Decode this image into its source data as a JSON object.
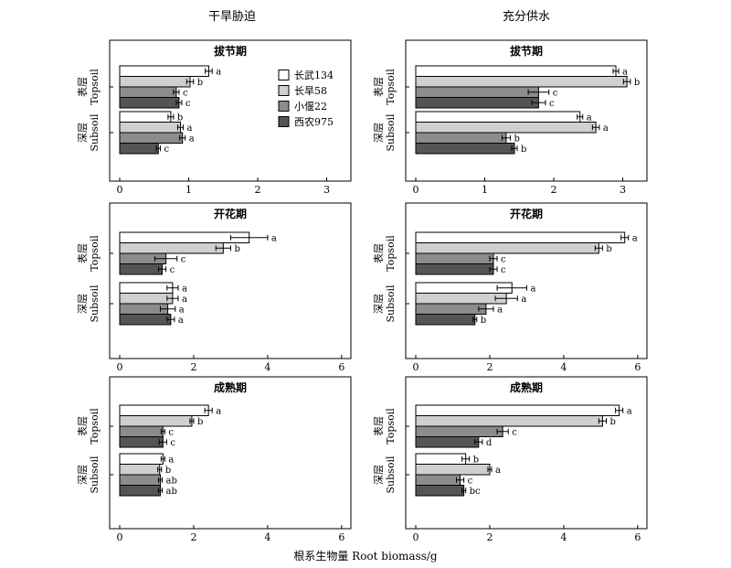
{
  "column_titles": [
    "干旱胁迫",
    "充分供水"
  ],
  "xlabel": "根系生物量 Root biomass/g",
  "layers": [
    {
      "cn": "表层",
      "en": "Topsoil"
    },
    {
      "cn": "深层",
      "en": "Subsoil"
    }
  ],
  "legend": [
    {
      "name": "长武134",
      "color": "#ffffff"
    },
    {
      "name": "长旱58",
      "color": "#d0d0d0"
    },
    {
      "name": "小偃22",
      "color": "#8c8c8c"
    },
    {
      "name": "西农975",
      "color": "#555555"
    }
  ],
  "chart_data": [
    {
      "type": "bar",
      "orientation": "horizontal",
      "column": "干旱胁迫",
      "title": "拔节期",
      "xlim": [
        0,
        3.35
      ],
      "xticks": [
        0,
        1,
        2,
        3
      ],
      "categories": [
        "表层 Topsoil",
        "深层 Subsoil"
      ],
      "series": [
        {
          "name": "长武134",
          "values": [
            1.29,
            0.74
          ],
          "errors": [
            0.05,
            0.04
          ],
          "letters": [
            "a",
            "b"
          ]
        },
        {
          "name": "长旱58",
          "values": [
            1.02,
            0.88
          ],
          "errors": [
            0.05,
            0.04
          ],
          "letters": [
            "b",
            "a"
          ]
        },
        {
          "name": "小偃22",
          "values": [
            0.82,
            0.91
          ],
          "errors": [
            0.04,
            0.04
          ],
          "letters": [
            "c",
            "a"
          ]
        },
        {
          "name": "西农975",
          "values": [
            0.86,
            0.56
          ],
          "errors": [
            0.04,
            0.03
          ],
          "letters": [
            "c",
            "c"
          ]
        }
      ]
    },
    {
      "type": "bar",
      "orientation": "horizontal",
      "column": "充分供水",
      "title": "拔节期",
      "xlim": [
        0,
        3.35
      ],
      "xticks": [
        0,
        1,
        2,
        3
      ],
      "categories": [
        "表层 Topsoil",
        "深层 Subsoil"
      ],
      "series": [
        {
          "name": "长武134",
          "values": [
            2.9,
            2.38
          ],
          "errors": [
            0.04,
            0.04
          ],
          "letters": [
            "a",
            "a"
          ]
        },
        {
          "name": "长旱58",
          "values": [
            3.06,
            2.61
          ],
          "errors": [
            0.05,
            0.05
          ],
          "letters": [
            "b",
            "a"
          ]
        },
        {
          "name": "小偃22",
          "values": [
            1.78,
            1.31
          ],
          "errors": [
            0.15,
            0.06
          ],
          "letters": [
            "c",
            "b"
          ]
        },
        {
          "name": "西农975",
          "values": [
            1.78,
            1.43
          ],
          "errors": [
            0.1,
            0.04
          ],
          "letters": [
            "c",
            "b"
          ]
        }
      ]
    },
    {
      "type": "bar",
      "orientation": "horizontal",
      "column": "干旱胁迫",
      "title": "开花期",
      "xlim": [
        0,
        6.25
      ],
      "xticks": [
        0,
        2,
        4,
        6
      ],
      "categories": [
        "表层 Topsoil",
        "深层 Subsoil"
      ],
      "series": [
        {
          "name": "长武134",
          "values": [
            3.5,
            1.43
          ],
          "errors": [
            0.5,
            0.15
          ],
          "letters": [
            "a",
            "a"
          ]
        },
        {
          "name": "长旱58",
          "values": [
            2.8,
            1.43
          ],
          "errors": [
            0.2,
            0.15
          ],
          "letters": [
            "b",
            "a"
          ]
        },
        {
          "name": "小偃22",
          "values": [
            1.25,
            1.3
          ],
          "errors": [
            0.3,
            0.2
          ],
          "letters": [
            "c",
            "a"
          ]
        },
        {
          "name": "西农975",
          "values": [
            1.15,
            1.38
          ],
          "errors": [
            0.1,
            0.1
          ],
          "letters": [
            "c",
            "a"
          ]
        }
      ]
    },
    {
      "type": "bar",
      "orientation": "horizontal",
      "column": "充分供水",
      "title": "开花期",
      "xlim": [
        0,
        6.25
      ],
      "xticks": [
        0,
        2,
        4,
        6
      ],
      "categories": [
        "表层 Topsoil",
        "深层 Subsoil"
      ],
      "series": [
        {
          "name": "长武134",
          "values": [
            5.65,
            2.6
          ],
          "errors": [
            0.1,
            0.4
          ],
          "letters": [
            "a",
            "a"
          ]
        },
        {
          "name": "长旱58",
          "values": [
            4.95,
            2.45
          ],
          "errors": [
            0.1,
            0.3
          ],
          "letters": [
            "b",
            "a"
          ]
        },
        {
          "name": "小偃22",
          "values": [
            2.1,
            1.9
          ],
          "errors": [
            0.1,
            0.2
          ],
          "letters": [
            "c",
            "a"
          ]
        },
        {
          "name": "西农975",
          "values": [
            2.1,
            1.6
          ],
          "errors": [
            0.1,
            0.05
          ],
          "letters": [
            "c",
            "b"
          ]
        }
      ]
    },
    {
      "type": "bar",
      "orientation": "horizontal",
      "column": "干旱胁迫",
      "title": "成熟期",
      "xlim": [
        0,
        6.25
      ],
      "xticks": [
        0,
        2,
        4,
        6
      ],
      "categories": [
        "表层 Topsoil",
        "深层 Subsoil"
      ],
      "series": [
        {
          "name": "长武134",
          "values": [
            2.4,
            1.17
          ],
          "errors": [
            0.1,
            0.05
          ],
          "letters": [
            "a",
            "a"
          ]
        },
        {
          "name": "长旱58",
          "values": [
            1.95,
            1.08
          ],
          "errors": [
            0.05,
            0.05
          ],
          "letters": [
            "b",
            "b"
          ]
        },
        {
          "name": "小偃22",
          "values": [
            1.17,
            1.1
          ],
          "errors": [
            0.05,
            0.05
          ],
          "letters": [
            "c",
            "ab"
          ]
        },
        {
          "name": "西农975",
          "values": [
            1.17,
            1.1
          ],
          "errors": [
            0.1,
            0.05
          ],
          "letters": [
            "c",
            "ab"
          ]
        }
      ]
    },
    {
      "type": "bar",
      "orientation": "horizontal",
      "column": "充分供水",
      "title": "成熟期",
      "xlim": [
        0,
        6.25
      ],
      "xticks": [
        0,
        2,
        4,
        6
      ],
      "categories": [
        "表层 Topsoil",
        "深层 Subsoil"
      ],
      "series": [
        {
          "name": "长武134",
          "values": [
            5.5,
            1.35
          ],
          "errors": [
            0.1,
            0.1
          ],
          "letters": [
            "a",
            "b"
          ]
        },
        {
          "name": "长旱58",
          "values": [
            5.05,
            2.0
          ],
          "errors": [
            0.1,
            0.05
          ],
          "letters": [
            "b",
            "a"
          ]
        },
        {
          "name": "小偃22",
          "values": [
            2.35,
            1.2
          ],
          "errors": [
            0.15,
            0.1
          ],
          "letters": [
            "c",
            "c"
          ]
        },
        {
          "name": "西农975",
          "values": [
            1.7,
            1.3
          ],
          "errors": [
            0.1,
            0.05
          ],
          "letters": [
            "d",
            "bc"
          ]
        }
      ]
    }
  ]
}
